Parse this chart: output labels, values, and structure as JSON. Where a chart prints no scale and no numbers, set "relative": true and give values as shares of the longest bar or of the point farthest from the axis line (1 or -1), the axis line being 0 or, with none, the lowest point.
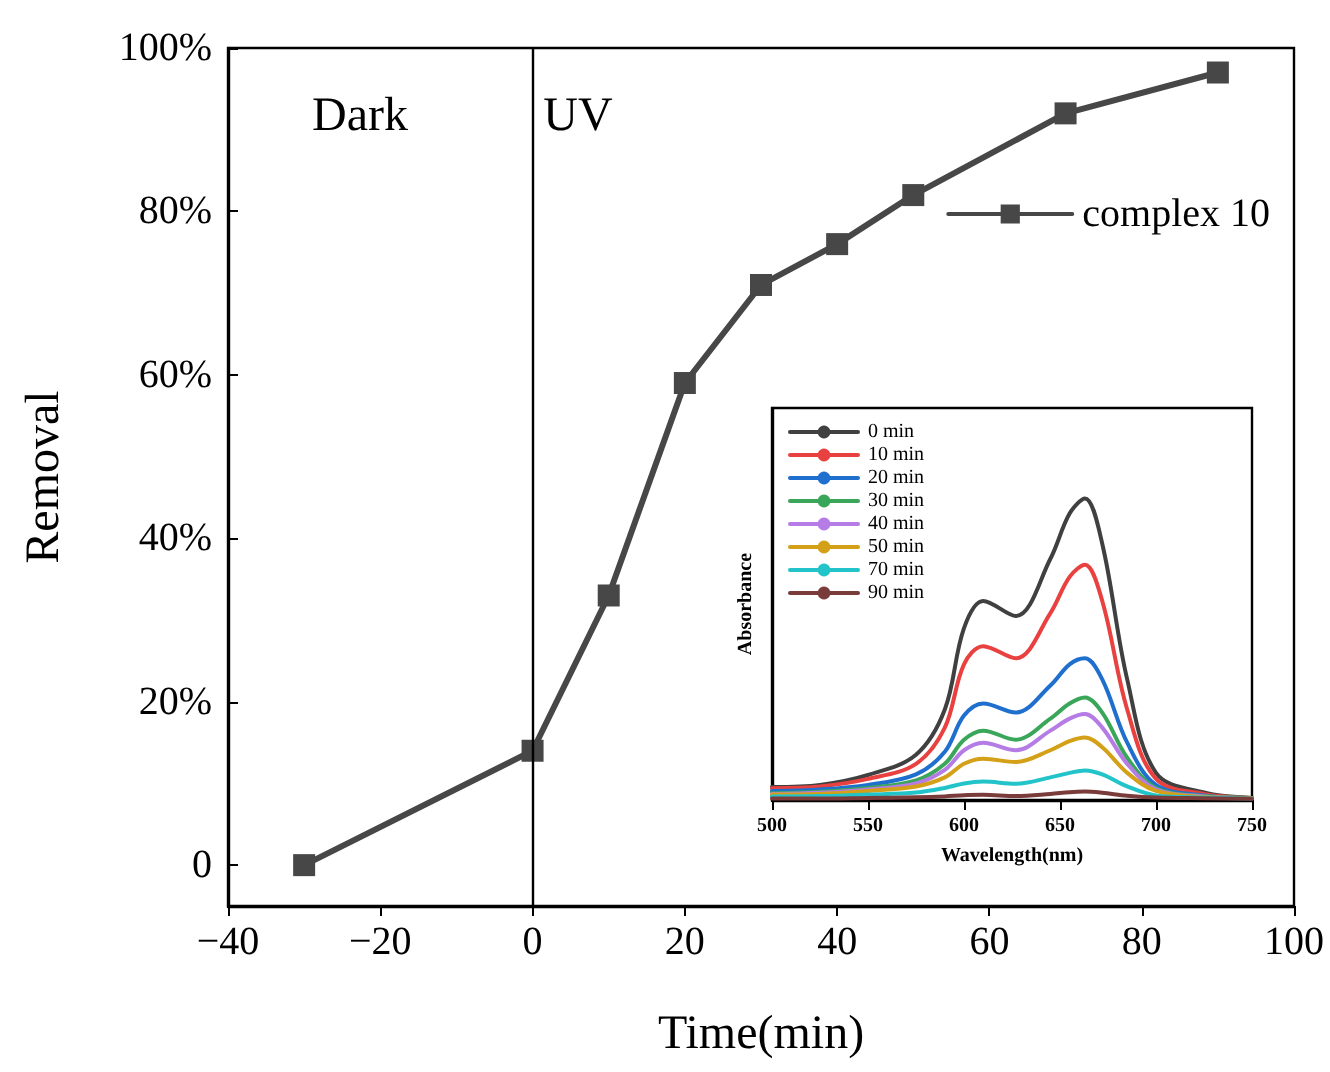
{
  "chart_data": [
    {
      "type": "line",
      "xlabel": "Time(min)",
      "ylabel": "Removal",
      "x": [
        -30,
        0,
        10,
        20,
        30,
        40,
        50,
        70,
        90
      ],
      "series": [
        {
          "name": "complex 10",
          "color": "#474747",
          "values": [
            0,
            14,
            33,
            59,
            71,
            76,
            82,
            92,
            97
          ]
        }
      ],
      "xlim": [
        -40,
        100
      ],
      "xticks": [
        {
          "value": -40,
          "label": "−40"
        },
        {
          "value": -20,
          "label": "−20"
        },
        0,
        20,
        40,
        60,
        80,
        100
      ],
      "ylim": [
        -5,
        100
      ],
      "yticks": [
        0,
        {
          "value": 20,
          "label": "20%"
        },
        {
          "value": 40,
          "label": "40%"
        },
        {
          "value": 60,
          "label": "60%"
        },
        {
          "value": 80,
          "label": "80%"
        },
        {
          "value": 100,
          "label": "100%"
        }
      ],
      "ref_lines": [
        {
          "axis": "x",
          "value": 0,
          "color": "#000000"
        }
      ],
      "annotations": [
        "Dark",
        "UV"
      ],
      "marker": "square",
      "line_style": "solid",
      "grid": false,
      "legend": "top right"
    },
    {
      "type": "line",
      "xlabel": "Wavelength(nm)",
      "ylabel": "Absorbance",
      "relative": true,
      "tick_labels": "x",
      "x": [
        500,
        525,
        550,
        575,
        590,
        600,
        610,
        627,
        645,
        655,
        663,
        672,
        685,
        700,
        725,
        750
      ],
      "series": [
        {
          "name": "0 min",
          "color": "#404040",
          "values": [
            0.043,
            0.05,
            0.083,
            0.15,
            0.3,
            0.57,
            0.66,
            0.61,
            0.8,
            0.95,
            1.0,
            0.85,
            0.4,
            0.09,
            0.025,
            0.007
          ]
        },
        {
          "name": "10 min",
          "color": "#e8413f",
          "values": [
            0.039,
            0.045,
            0.07,
            0.12,
            0.24,
            0.45,
            0.51,
            0.47,
            0.62,
            0.74,
            0.78,
            0.66,
            0.3,
            0.07,
            0.02,
            0.007
          ]
        },
        {
          "name": "20 min",
          "color": "#1f6fcf",
          "values": [
            0.03,
            0.035,
            0.05,
            0.085,
            0.16,
            0.28,
            0.32,
            0.29,
            0.38,
            0.45,
            0.47,
            0.4,
            0.19,
            0.05,
            0.015,
            0.007
          ]
        },
        {
          "name": "30 min",
          "color": "#3aa65a",
          "values": [
            0.022,
            0.027,
            0.04,
            0.065,
            0.12,
            0.2,
            0.23,
            0.2,
            0.27,
            0.32,
            0.34,
            0.29,
            0.14,
            0.04,
            0.013,
            0.007
          ]
        },
        {
          "name": "40 min",
          "color": "#b57ce6",
          "values": [
            0.02,
            0.024,
            0.035,
            0.055,
            0.1,
            0.165,
            0.19,
            0.165,
            0.23,
            0.27,
            0.285,
            0.24,
            0.12,
            0.035,
            0.012,
            0.007
          ]
        },
        {
          "name": "50 min",
          "color": "#d4a017",
          "values": [
            0.018,
            0.02,
            0.03,
            0.045,
            0.075,
            0.12,
            0.137,
            0.126,
            0.165,
            0.195,
            0.207,
            0.175,
            0.09,
            0.03,
            0.01,
            0.007
          ]
        },
        {
          "name": "70 min",
          "color": "#22c3c9",
          "values": [
            0.012,
            0.013,
            0.018,
            0.025,
            0.04,
            0.055,
            0.061,
            0.054,
            0.075,
            0.09,
            0.098,
            0.085,
            0.045,
            0.015,
            0.008,
            0.005
          ]
        },
        {
          "name": "90 min",
          "color": "#7a3b3b",
          "values": [
            0.005,
            0.005,
            0.007,
            0.009,
            0.012,
            0.016,
            0.017,
            0.013,
            0.02,
            0.026,
            0.028,
            0.024,
            0.014,
            0.008,
            0.006,
            0.004
          ]
        }
      ],
      "xlim": [
        500,
        750
      ],
      "xticks": [
        500,
        550,
        600,
        650,
        700,
        750
      ],
      "marker": "none",
      "line_style": "solid",
      "grid": false,
      "legend": "top left"
    }
  ]
}
